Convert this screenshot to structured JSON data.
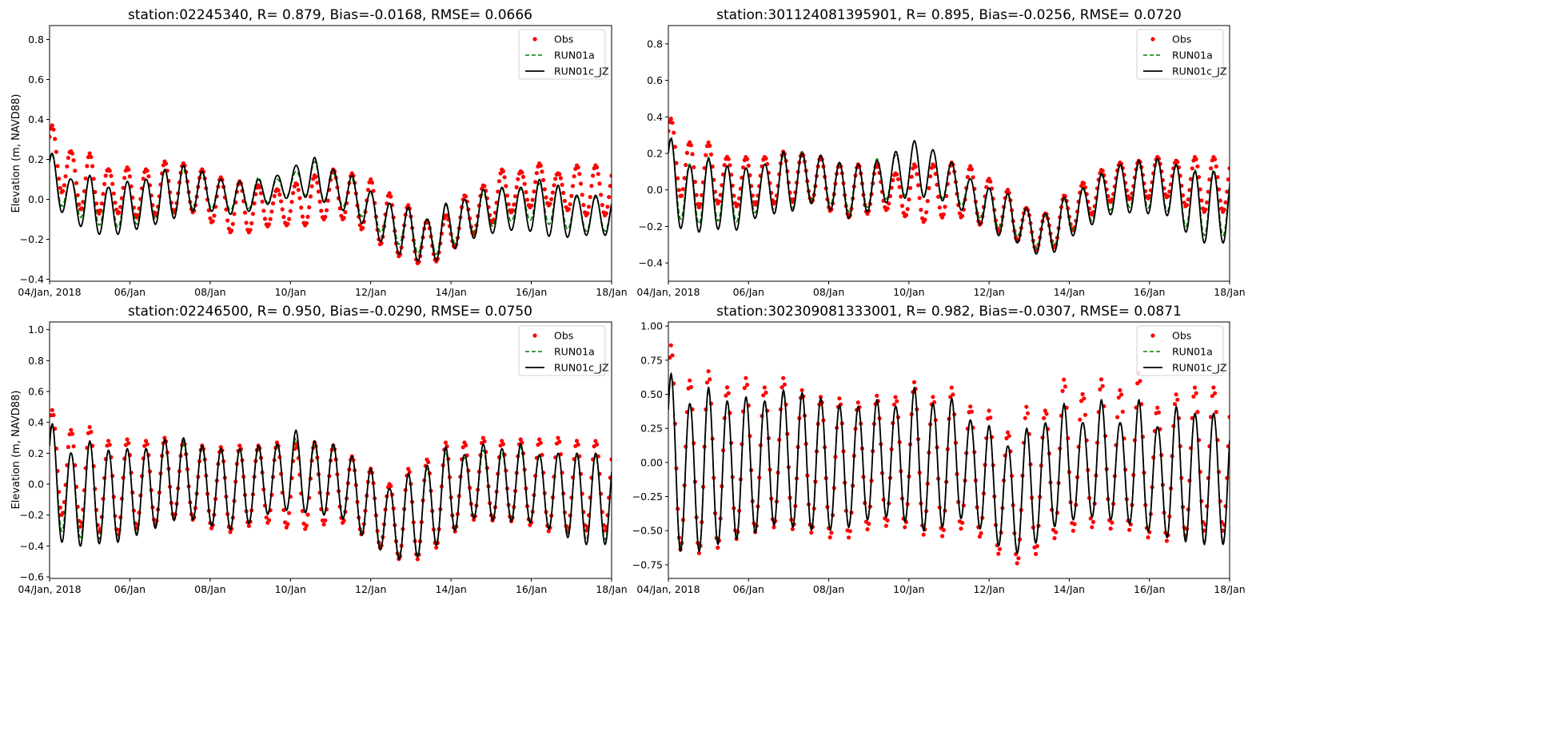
{
  "figure": {
    "x_tick_labels": [
      "04/Jan, 2018",
      "06/Jan",
      "08/Jan",
      "10/Jan",
      "12/Jan",
      "14/Jan",
      "16/Jan",
      "18/Jan"
    ],
    "x_range_days": [
      0,
      14
    ],
    "x_tick_days": [
      0,
      2,
      4,
      6,
      8,
      10,
      12,
      14
    ],
    "legend": [
      {
        "label": "Obs",
        "style": "markers",
        "color": "#ff0000"
      },
      {
        "label": "RUN01a",
        "style": "dashed",
        "color": "#008000"
      },
      {
        "label": "RUN01c_JZ",
        "style": "solid",
        "color": "#000000"
      }
    ],
    "legend_position": "upper right"
  },
  "chart_data": [
    {
      "type": "line",
      "title": "station:02245340, R= 0.879, Bias=-0.0168, RMSE= 0.0666",
      "xlabel": "",
      "ylabel": "Elevation (m, NAVD88)",
      "ylim": [
        -0.41,
        0.87
      ],
      "yticks": [
        -0.4,
        -0.2,
        0.0,
        0.2,
        0.4,
        0.6,
        0.8
      ],
      "ytick_labels": [
        "−0.4",
        "−0.2",
        "0.0",
        "0.2",
        "0.4",
        "0.6",
        "0.8"
      ],
      "show_ylabel": true,
      "x_units": "days since 04/Jan 2018",
      "series": [
        {
          "name": "Obs",
          "highs": [
            0.4,
            0.37,
            0.24,
            0.23,
            0.15,
            0.16,
            0.15,
            0.19,
            0.18,
            0.15,
            0.11,
            0.09,
            0.07,
            0.05,
            0.08,
            0.12,
            0.15,
            0.13,
            0.1,
            0.03,
            -0.03,
            -0.11,
            -0.08,
            0.02,
            0.07,
            0.15,
            0.14,
            0.18,
            0.13,
            0.17
          ],
          "lows": [
            0.12,
            0.07,
            0.0,
            -0.1,
            -0.04,
            -0.1,
            -0.08,
            -0.08,
            -0.05,
            -0.08,
            -0.15,
            -0.18,
            -0.15,
            -0.12,
            -0.14,
            -0.12,
            -0.08,
            -0.12,
            -0.18,
            -0.27,
            -0.3,
            -0.34,
            -0.28,
            -0.2,
            -0.15,
            -0.08,
            -0.05,
            -0.03,
            -0.03,
            -0.08
          ]
        },
        {
          "name": "RUN01a",
          "highs": [
            0.28,
            0.22,
            0.1,
            0.12,
            0.06,
            0.09,
            0.1,
            0.14,
            0.15,
            0.13,
            0.1,
            0.09,
            0.11,
            0.1,
            0.14,
            0.19,
            0.13,
            0.1,
            0.03,
            -0.03,
            -0.05,
            -0.1,
            -0.03,
            0.0,
            0.03,
            0.05,
            0.05,
            0.08,
            0.06,
            0.01
          ],
          "lows": [
            0.12,
            -0.01,
            -0.06,
            -0.12,
            -0.14,
            -0.14,
            -0.11,
            -0.09,
            -0.05,
            -0.04,
            -0.05,
            -0.06,
            -0.03,
            0.0,
            0.03,
            0.01,
            -0.02,
            -0.05,
            -0.12,
            -0.21,
            -0.24,
            -0.3,
            -0.25,
            -0.19,
            -0.15,
            -0.12,
            -0.1,
            -0.11,
            -0.14,
            -0.16
          ]
        },
        {
          "name": "RUN01c_JZ",
          "highs": [
            0.3,
            0.23,
            0.1,
            0.12,
            0.06,
            0.09,
            0.1,
            0.15,
            0.17,
            0.14,
            0.1,
            0.09,
            0.1,
            0.12,
            0.17,
            0.21,
            0.15,
            0.12,
            0.04,
            -0.02,
            -0.04,
            -0.1,
            -0.02,
            0.0,
            0.05,
            0.06,
            0.06,
            0.1,
            0.07,
            0.02
          ],
          "lows": [
            0.07,
            -0.03,
            -0.1,
            -0.17,
            -0.18,
            -0.17,
            -0.13,
            -0.12,
            -0.07,
            -0.05,
            -0.07,
            -0.08,
            -0.04,
            -0.01,
            0.02,
            0.0,
            -0.03,
            -0.08,
            -0.16,
            -0.26,
            -0.29,
            -0.33,
            -0.28,
            -0.21,
            -0.18,
            -0.16,
            -0.15,
            -0.17,
            -0.2,
            -0.18
          ]
        }
      ]
    },
    {
      "type": "line",
      "title": "station:301124081395901, R= 0.895, Bias=-0.0256, RMSE= 0.0720",
      "xlabel": "",
      "ylabel": "",
      "ylim": [
        -0.5,
        0.9
      ],
      "yticks": [
        -0.4,
        -0.2,
        0.0,
        0.2,
        0.4,
        0.6,
        0.8
      ],
      "ytick_labels": [
        "−0.4",
        "−0.2",
        "0.0",
        "0.2",
        "0.4",
        "0.6",
        "0.8"
      ],
      "show_ylabel": false,
      "x_units": "days since 04/Jan 2018",
      "series": [
        {
          "name": "Obs",
          "highs": [
            0.42,
            0.39,
            0.26,
            0.26,
            0.18,
            0.18,
            0.18,
            0.21,
            0.2,
            0.18,
            0.14,
            0.14,
            0.14,
            0.09,
            0.14,
            0.14,
            0.15,
            0.13,
            0.06,
            0.0,
            -0.1,
            -0.13,
            -0.03,
            0.04,
            0.11,
            0.15,
            0.16,
            0.18,
            0.16,
            0.18
          ],
          "lows": [
            0.03,
            0.05,
            -0.12,
            -0.07,
            -0.08,
            -0.1,
            -0.06,
            -0.09,
            -0.04,
            -0.09,
            -0.14,
            -0.16,
            -0.1,
            -0.12,
            -0.17,
            -0.18,
            -0.12,
            -0.18,
            -0.2,
            -0.26,
            -0.3,
            -0.36,
            -0.27,
            -0.17,
            -0.1,
            -0.03,
            -0.07,
            -0.02,
            -0.06,
            -0.12
          ]
        },
        {
          "name": "RUN01a",
          "highs": [
            0.33,
            0.29,
            0.14,
            0.18,
            0.13,
            0.12,
            0.14,
            0.19,
            0.21,
            0.19,
            0.14,
            0.14,
            0.17,
            0.19,
            0.27,
            0.22,
            0.15,
            0.06,
            0.01,
            -0.03,
            -0.11,
            -0.14,
            -0.05,
            0.0,
            0.08,
            0.13,
            0.14,
            0.16,
            0.13,
            0.11
          ],
          "lows": [
            -0.06,
            -0.1,
            -0.22,
            -0.15,
            -0.19,
            -0.16,
            -0.09,
            -0.14,
            -0.06,
            -0.05,
            -0.11,
            -0.13,
            -0.06,
            -0.04,
            -0.02,
            -0.04,
            -0.05,
            -0.12,
            -0.19,
            -0.23,
            -0.28,
            -0.36,
            -0.25,
            -0.19,
            -0.15,
            -0.07,
            -0.12,
            -0.08,
            -0.15,
            -0.25
          ]
        },
        {
          "name": "RUN01c_JZ",
          "highs": [
            0.34,
            0.28,
            0.13,
            0.17,
            0.13,
            0.12,
            0.14,
            0.21,
            0.2,
            0.19,
            0.15,
            0.14,
            0.16,
            0.21,
            0.27,
            0.22,
            0.15,
            0.06,
            0.01,
            -0.02,
            -0.1,
            -0.13,
            -0.04,
            0.01,
            0.09,
            0.14,
            0.16,
            0.17,
            0.14,
            0.1
          ],
          "lows": [
            -0.1,
            -0.15,
            -0.27,
            -0.19,
            -0.24,
            -0.2,
            -0.11,
            -0.15,
            -0.08,
            -0.07,
            -0.15,
            -0.16,
            -0.08,
            -0.06,
            -0.03,
            -0.05,
            -0.07,
            -0.15,
            -0.23,
            -0.27,
            -0.31,
            -0.39,
            -0.29,
            -0.21,
            -0.17,
            -0.1,
            -0.15,
            -0.11,
            -0.17,
            -0.29
          ]
        }
      ]
    },
    {
      "type": "line",
      "title": "station:02246500, R= 0.950, Bias=-0.0290, RMSE= 0.0750",
      "xlabel": "",
      "ylabel": "Elevation (m, NAVD88)",
      "ylim": [
        -0.61,
        1.05
      ],
      "yticks": [
        -0.6,
        -0.4,
        -0.2,
        0.0,
        0.2,
        0.4,
        0.6,
        0.8,
        1.0
      ],
      "ytick_labels": [
        "−0.6",
        "−0.4",
        "−0.2",
        "0.0",
        "0.2",
        "0.4",
        "0.6",
        "0.8",
        "1.0"
      ],
      "show_ylabel": true,
      "x_units": "days since 04/Jan 2018",
      "series": [
        {
          "name": "Obs",
          "highs": [
            0.5,
            0.48,
            0.35,
            0.37,
            0.28,
            0.29,
            0.28,
            0.3,
            0.28,
            0.25,
            0.24,
            0.25,
            0.25,
            0.27,
            0.26,
            0.27,
            0.25,
            0.18,
            0.1,
            0.0,
            0.1,
            0.16,
            0.27,
            0.27,
            0.3,
            0.28,
            0.29,
            0.29,
            0.3,
            0.28
          ],
          "lows": [
            -0.07,
            -0.12,
            -0.28,
            -0.27,
            -0.35,
            -0.3,
            -0.27,
            -0.25,
            -0.19,
            -0.27,
            -0.3,
            -0.32,
            -0.22,
            -0.28,
            -0.28,
            -0.3,
            -0.22,
            -0.28,
            -0.37,
            -0.45,
            -0.52,
            -0.45,
            -0.37,
            -0.24,
            -0.22,
            -0.25,
            -0.23,
            -0.3,
            -0.31,
            -0.3
          ]
        },
        {
          "name": "RUN01a",
          "highs": [
            0.4,
            0.38,
            0.2,
            0.27,
            0.21,
            0.23,
            0.22,
            0.28,
            0.27,
            0.23,
            0.22,
            0.22,
            0.23,
            0.25,
            0.3,
            0.25,
            0.25,
            0.17,
            0.09,
            -0.03,
            0.06,
            0.1,
            0.21,
            0.17,
            0.22,
            0.2,
            0.24,
            0.18,
            0.2,
            0.18
          ],
          "lows": [
            -0.19,
            -0.25,
            -0.36,
            -0.33,
            -0.38,
            -0.34,
            -0.3,
            -0.25,
            -0.2,
            -0.24,
            -0.28,
            -0.29,
            -0.2,
            -0.17,
            -0.15,
            -0.2,
            -0.18,
            -0.24,
            -0.38,
            -0.43,
            -0.5,
            -0.41,
            -0.35,
            -0.22,
            -0.2,
            -0.24,
            -0.2,
            -0.27,
            -0.28,
            -0.36
          ]
        },
        {
          "name": "RUN01c_JZ",
          "highs": [
            0.41,
            0.39,
            0.2,
            0.28,
            0.22,
            0.23,
            0.23,
            0.29,
            0.3,
            0.25,
            0.23,
            0.23,
            0.25,
            0.26,
            0.35,
            0.28,
            0.26,
            0.18,
            0.1,
            -0.03,
            0.07,
            0.12,
            0.24,
            0.19,
            0.26,
            0.23,
            0.26,
            0.19,
            0.2,
            0.2
          ],
          "lows": [
            -0.26,
            -0.32,
            -0.43,
            -0.37,
            -0.4,
            -0.35,
            -0.31,
            -0.26,
            -0.21,
            -0.25,
            -0.29,
            -0.3,
            -0.21,
            -0.18,
            -0.16,
            -0.21,
            -0.19,
            -0.26,
            -0.4,
            -0.45,
            -0.52,
            -0.42,
            -0.37,
            -0.23,
            -0.21,
            -0.26,
            -0.22,
            -0.28,
            -0.3,
            -0.39
          ]
        }
      ]
    },
    {
      "type": "line",
      "title": "station:302309081333001, R= 0.982, Bias=-0.0307, RMSE= 0.0871",
      "xlabel": "",
      "ylabel": "",
      "ylim": [
        -0.85,
        1.03
      ],
      "yticks": [
        -0.75,
        -0.5,
        -0.25,
        0.0,
        0.25,
        0.5,
        0.75,
        1.0
      ],
      "ytick_labels": [
        "−0.75",
        "−0.50",
        "−0.25",
        "0.00",
        "0.25",
        "0.50",
        "0.75",
        "1.00"
      ],
      "show_ylabel": false,
      "x_units": "days since 04/Jan 2018",
      "series": [
        {
          "name": "Obs",
          "highs": [
            0.8,
            0.86,
            0.6,
            0.67,
            0.55,
            0.62,
            0.55,
            0.62,
            0.53,
            0.48,
            0.47,
            0.44,
            0.49,
            0.48,
            0.59,
            0.48,
            0.55,
            0.41,
            0.38,
            0.22,
            0.41,
            0.38,
            0.61,
            0.5,
            0.61,
            0.53,
            0.66,
            0.4,
            0.5,
            0.55
          ],
          "lows": [
            -0.5,
            -0.6,
            -0.68,
            -0.65,
            -0.6,
            -0.52,
            -0.5,
            -0.45,
            -0.53,
            -0.5,
            -0.6,
            -0.5,
            -0.48,
            -0.45,
            -0.5,
            -0.56,
            -0.52,
            -0.45,
            -0.64,
            -0.7,
            -0.78,
            -0.56,
            -0.55,
            -0.45,
            -0.5,
            -0.47,
            -0.52,
            -0.58,
            -0.57,
            -0.5
          ]
        },
        {
          "name": "RUN01a",
          "highs": [
            0.62,
            0.64,
            0.42,
            0.53,
            0.44,
            0.47,
            0.44,
            0.51,
            0.5,
            0.46,
            0.41,
            0.4,
            0.45,
            0.4,
            0.54,
            0.42,
            0.46,
            0.3,
            0.26,
            0.12,
            0.24,
            0.28,
            0.42,
            0.28,
            0.45,
            0.28,
            0.45,
            0.25,
            0.4,
            0.35
          ],
          "lows": [
            -0.53,
            -0.6,
            -0.65,
            -0.6,
            -0.56,
            -0.52,
            -0.48,
            -0.42,
            -0.5,
            -0.46,
            -0.5,
            -0.42,
            -0.4,
            -0.38,
            -0.46,
            -0.5,
            -0.42,
            -0.38,
            -0.56,
            -0.62,
            -0.67,
            -0.48,
            -0.44,
            -0.38,
            -0.4,
            -0.42,
            -0.46,
            -0.52,
            -0.55,
            -0.58
          ]
        },
        {
          "name": "RUN01c_JZ",
          "highs": [
            0.63,
            0.65,
            0.43,
            0.55,
            0.45,
            0.48,
            0.45,
            0.53,
            0.51,
            0.47,
            0.42,
            0.41,
            0.46,
            0.41,
            0.55,
            0.43,
            0.47,
            0.31,
            0.27,
            0.12,
            0.25,
            0.29,
            0.43,
            0.29,
            0.46,
            0.29,
            0.46,
            0.26,
            0.41,
            0.36
          ],
          "lows": [
            -0.54,
            -0.62,
            -0.68,
            -0.62,
            -0.58,
            -0.54,
            -0.49,
            -0.43,
            -0.52,
            -0.47,
            -0.52,
            -0.43,
            -0.41,
            -0.39,
            -0.48,
            -0.52,
            -0.43,
            -0.39,
            -0.58,
            -0.64,
            -0.69,
            -0.49,
            -0.45,
            -0.39,
            -0.41,
            -0.43,
            -0.47,
            -0.54,
            -0.56,
            -0.6
          ]
        }
      ]
    }
  ]
}
